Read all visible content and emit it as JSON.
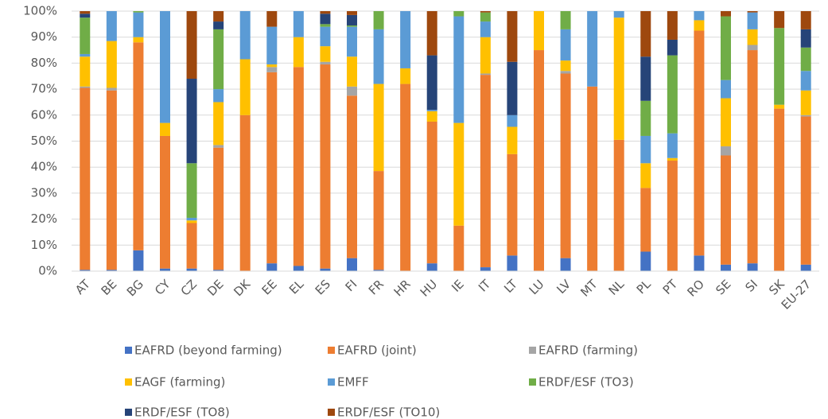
{
  "chart_data": {
    "type": "stacked_bar",
    "categories": [
      "AT",
      "BE",
      "BG",
      "CY",
      "CZ",
      "DE",
      "DK",
      "EE",
      "EL",
      "ES",
      "FI",
      "FR",
      "HR",
      "HU",
      "IE",
      "IT",
      "LT",
      "LU",
      "LV",
      "MT",
      "NL",
      "PL",
      "PT",
      "RO",
      "SE",
      "SI",
      "SK",
      "EU-27"
    ],
    "series": [
      {
        "name": "EAFRD (beyond farming)",
        "color": "#4472c4",
        "values": [
          0.5,
          0.5,
          8,
          1,
          1,
          0.5,
          0,
          3,
          2,
          1,
          5,
          0.5,
          0,
          3,
          0,
          1.5,
          6,
          0,
          5,
          0,
          0,
          7.5,
          0,
          6,
          2.5,
          3,
          0,
          2.5
        ]
      },
      {
        "name": "EAFRD (joint)",
        "color": "#ed7d31",
        "values": [
          70,
          69,
          80,
          51,
          17.5,
          47,
          60,
          73.5,
          76.5,
          78.5,
          62.5,
          38,
          72,
          54.5,
          17.5,
          74,
          39,
          85,
          71,
          71,
          50.5,
          24.5,
          42.5,
          86.5,
          42,
          82,
          62.5,
          57
        ]
      },
      {
        "name": "EAFRD (farming)",
        "color": "#a5a5a5",
        "values": [
          0.5,
          1,
          0,
          0,
          0,
          1,
          0,
          2,
          0,
          1,
          3.5,
          0,
          0,
          0,
          0,
          0.5,
          0,
          0,
          1,
          0,
          0,
          0,
          0,
          0,
          3.5,
          2,
          0,
          0.5
        ]
      },
      {
        "name": "EAGF (farming)",
        "color": "#ffc000",
        "values": [
          11.5,
          18,
          2,
          5,
          1,
          16.5,
          21.5,
          1,
          11.5,
          6,
          11.5,
          33.5,
          6,
          4,
          39.5,
          14,
          10.5,
          15,
          4,
          0,
          47,
          9.5,
          1,
          4,
          18.5,
          6,
          1.5,
          9.5
        ]
      },
      {
        "name": "EMFF",
        "color": "#5b9bd5",
        "values": [
          1,
          11.5,
          9.5,
          43,
          1,
          5,
          18.5,
          14.5,
          10,
          7.5,
          11.5,
          21,
          22,
          0.5,
          41,
          6,
          4.5,
          0,
          12,
          29,
          2.5,
          10.5,
          9.5,
          3.5,
          7,
          6.5,
          0,
          7.5
        ]
      },
      {
        "name": "ERDF/ESF (TO3)",
        "color": "#70ad47",
        "values": [
          14,
          0,
          0.5,
          0,
          21,
          23,
          0,
          0,
          0,
          1,
          0.5,
          7,
          0,
          0,
          2,
          3.5,
          0,
          0,
          7,
          0,
          0,
          13.5,
          30,
          0,
          24.5,
          0,
          29.5,
          9
        ]
      },
      {
        "name": "ERDF/ESF (TO8)",
        "color": "#264478",
        "values": [
          1.5,
          0,
          0,
          0,
          32.5,
          3,
          0,
          0,
          0,
          4,
          4,
          0,
          0,
          21,
          0,
          0,
          20.5,
          0,
          0,
          0,
          0,
          17,
          6,
          0,
          0,
          0,
          0,
          7
        ]
      },
      {
        "name": "ERDF/ESF (TO10)",
        "color": "#9e480e",
        "values": [
          1,
          0,
          0,
          0,
          26,
          4,
          0,
          6,
          0,
          1,
          1.5,
          0,
          0,
          17,
          0,
          0.5,
          19.5,
          0,
          0,
          0,
          0,
          17.5,
          11,
          0,
          2,
          0.5,
          6.5,
          7
        ]
      }
    ],
    "ylim": [
      0,
      100
    ],
    "yticks": [
      {
        "value": 0,
        "label": "0%"
      },
      {
        "value": 10,
        "label": "10%"
      },
      {
        "value": 20,
        "label": "20%"
      },
      {
        "value": 30,
        "label": "30%"
      },
      {
        "value": 40,
        "label": "40%"
      },
      {
        "value": 50,
        "label": "50%"
      },
      {
        "value": 60,
        "label": "60%"
      },
      {
        "value": 70,
        "label": "70%"
      },
      {
        "value": 80,
        "label": "80%"
      },
      {
        "value": 90,
        "label": "90%"
      },
      {
        "value": 100,
        "label": "100%"
      }
    ],
    "grid": true,
    "legend": "bottom"
  }
}
